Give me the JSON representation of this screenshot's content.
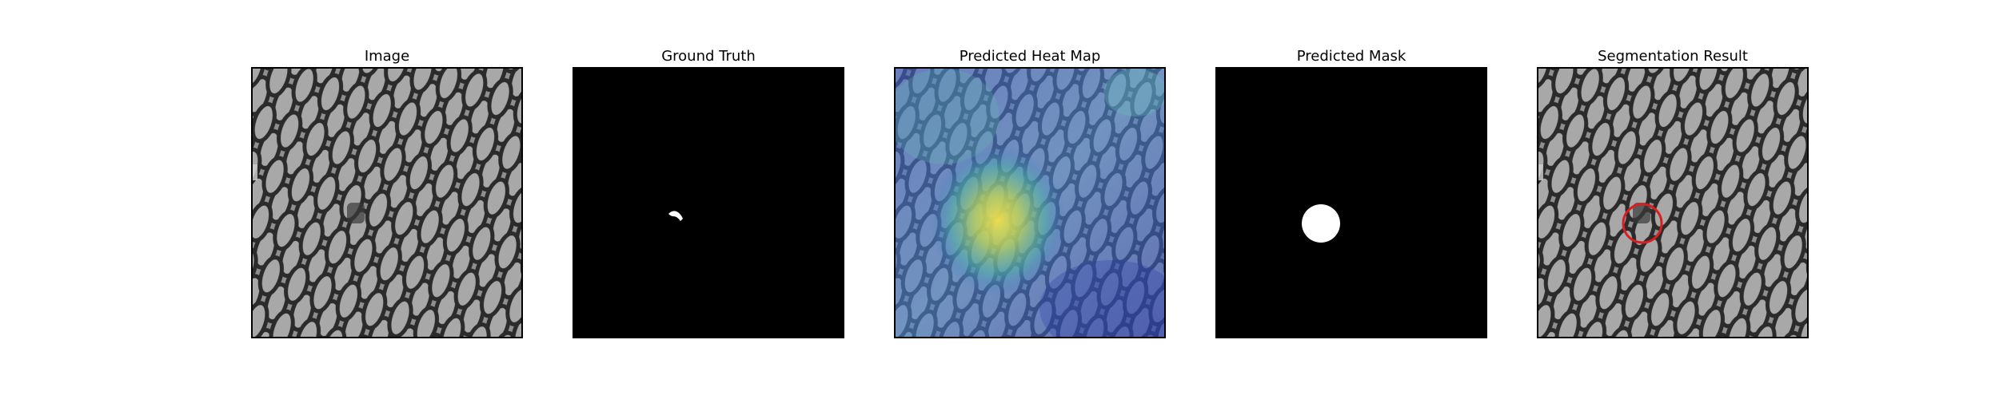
{
  "figure": {
    "panels": [
      {
        "title": "Image",
        "kind": "image"
      },
      {
        "title": "Ground Truth",
        "kind": "ground-truth"
      },
      {
        "title": "Predicted Heat Map",
        "kind": "heat-map"
      },
      {
        "title": "Predicted Mask",
        "kind": "mask"
      },
      {
        "title": "Segmentation Result",
        "kind": "overlay"
      }
    ]
  },
  "colors": {
    "mesh_light": "#9a9a9a",
    "mesh_dark": "#2a2a2a",
    "mask_background": "#000000",
    "mask_foreground": "#ffffff",
    "heat_low": "#3b5fc0",
    "heat_high": "#e8d84a",
    "contour": "#d81e1e"
  }
}
